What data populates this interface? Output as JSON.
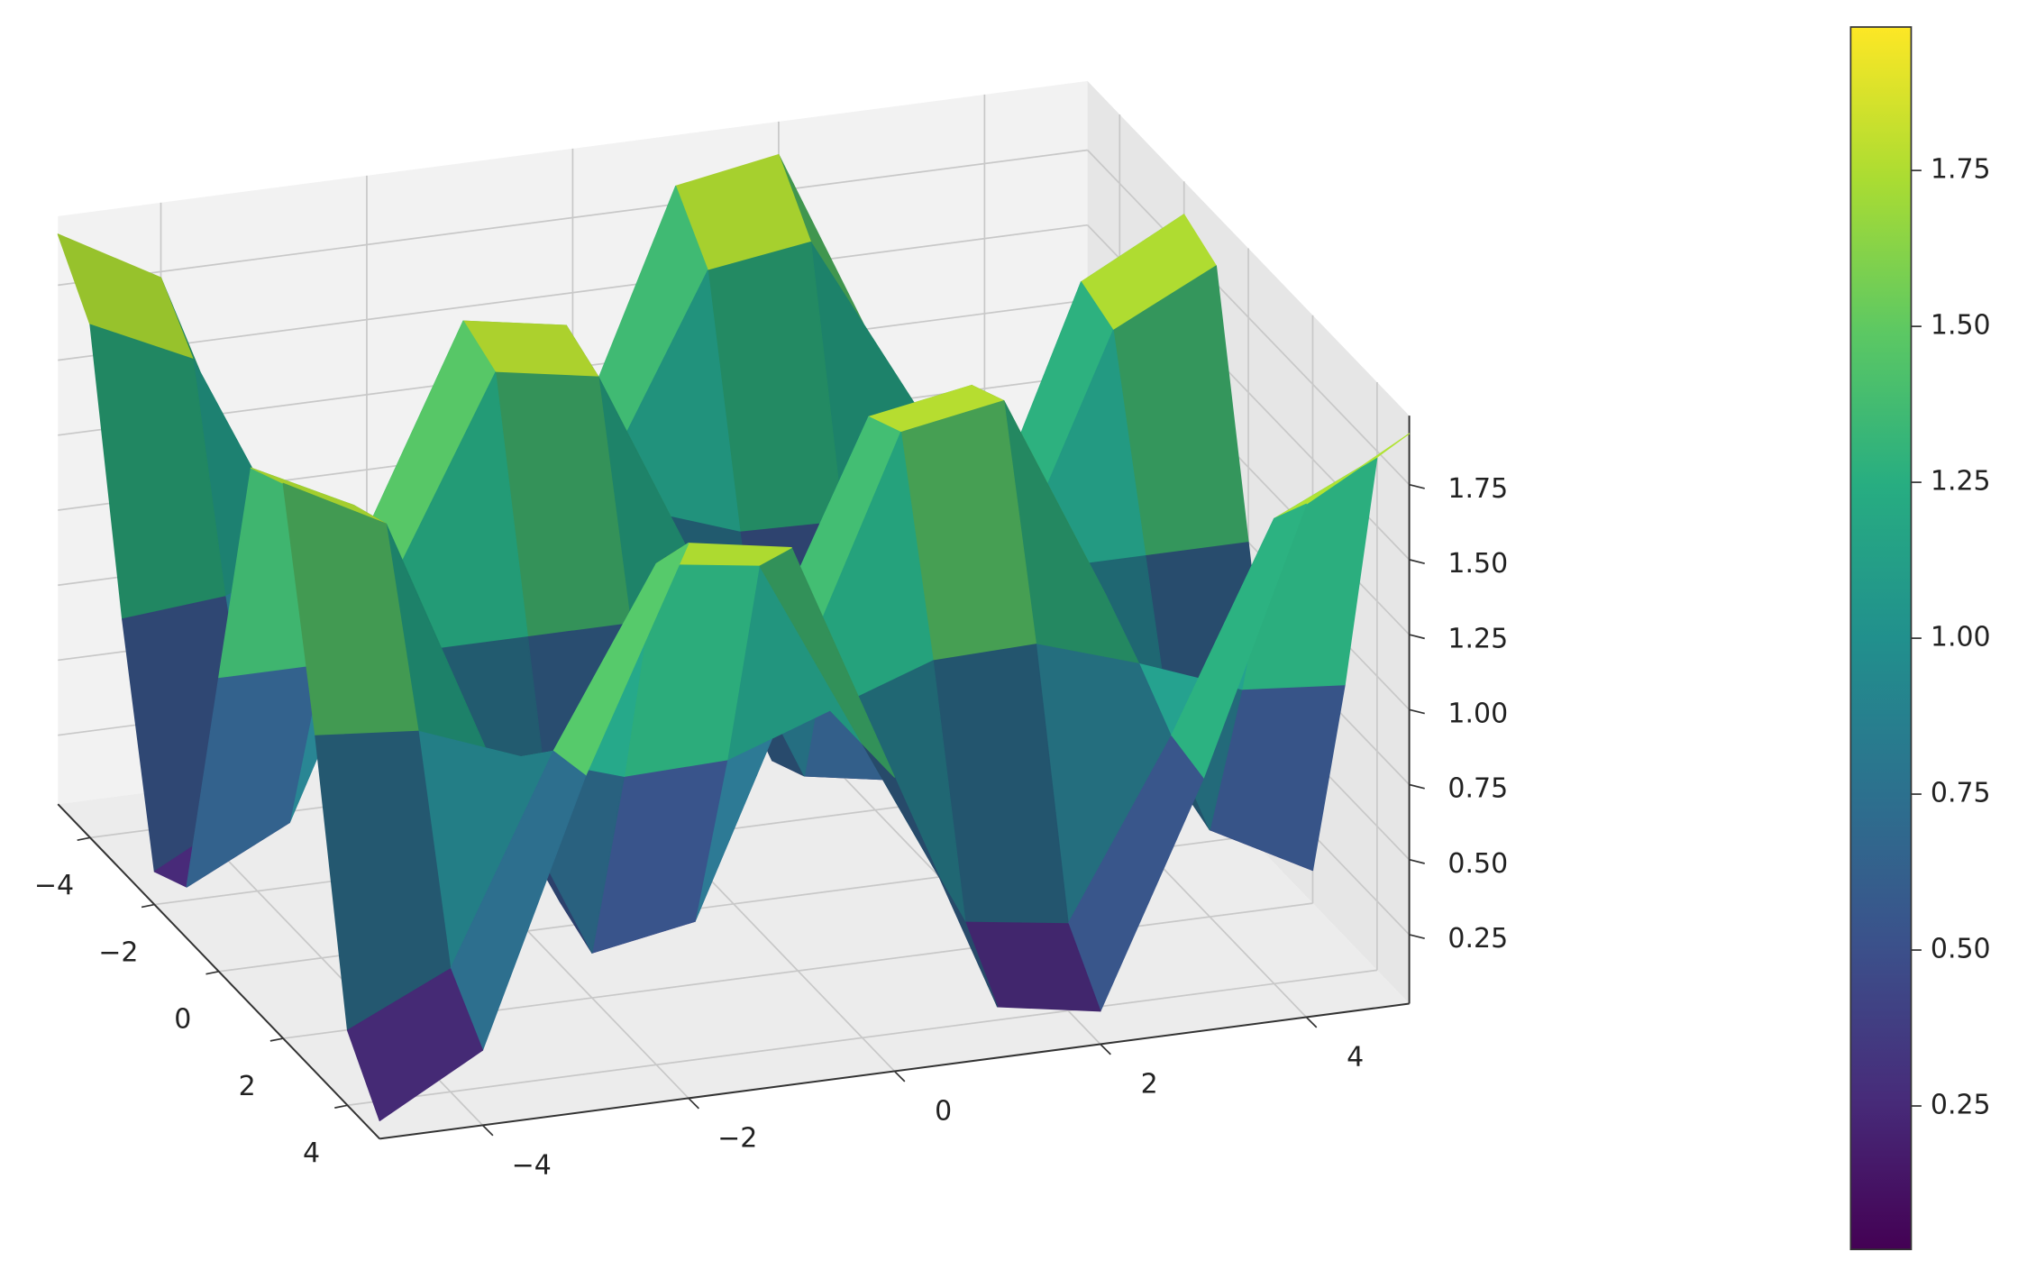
{
  "chart_data": {
    "type": "surface",
    "x": [
      -5,
      -4,
      -3,
      -2,
      -1,
      0,
      1,
      2,
      3,
      4,
      5
    ],
    "y": [
      -5,
      -4,
      -3,
      -2,
      -1,
      0,
      1,
      2,
      3,
      4,
      5
    ],
    "z": [
      [
        1.92,
        1.73,
        0.86,
        0.13,
        0.19,
        1,
        1.81,
        1.87,
        1.14,
        0.27,
        0.08
      ],
      [
        1.73,
        1.57,
        0.89,
        0.31,
        0.36,
        1,
        1.64,
        1.69,
        1.11,
        0.43,
        0.27
      ],
      [
        0.86,
        0.89,
        1.02,
        1.13,
        1.12,
        1,
        0.88,
        0.87,
        0.98,
        1.11,
        1.14
      ],
      [
        0.13,
        0.31,
        1.13,
        1.83,
        1.77,
        1,
        0.23,
        0.17,
        0.87,
        1.69,
        1.87
      ],
      [
        0.19,
        0.36,
        1.12,
        1.77,
        1.71,
        1,
        0.29,
        0.23,
        0.88,
        1.64,
        1.81
      ],
      [
        1,
        1,
        1,
        1,
        1,
        1,
        1,
        1,
        1,
        1,
        1
      ],
      [
        1.81,
        1.64,
        0.88,
        0.23,
        0.29,
        1,
        1.71,
        1.77,
        1.12,
        0.36,
        0.19
      ],
      [
        1.87,
        1.69,
        0.87,
        0.17,
        0.23,
        1,
        1.77,
        1.83,
        1.13,
        0.31,
        0.13
      ],
      [
        1.14,
        1.11,
        0.98,
        0.87,
        0.88,
        1,
        1.12,
        1.13,
        1.02,
        0.89,
        0.86
      ],
      [
        0.27,
        0.43,
        1.11,
        1.69,
        1.64,
        1,
        0.36,
        0.31,
        0.89,
        1.57,
        1.73
      ],
      [
        0.08,
        0.27,
        1.14,
        1.87,
        1.81,
        1,
        0.19,
        0.13,
        0.86,
        1.73,
        1.92
      ]
    ],
    "xlim": [
      -5,
      5
    ],
    "ylim": [
      -5,
      5
    ],
    "zlim": [
      0.02,
      1.98
    ],
    "xticks": [
      {
        "value": -4,
        "label": "−4"
      },
      {
        "value": -2,
        "label": "−2"
      },
      0,
      2,
      4
    ],
    "yticks": [
      {
        "value": -4,
        "label": "−4"
      },
      {
        "value": -2,
        "label": "−2"
      },
      0,
      2,
      4
    ],
    "zticks": [
      0.25,
      {
        "value": 0.5,
        "label": "0.50"
      },
      0.75,
      {
        "value": 1,
        "label": "1.00"
      },
      1.25,
      {
        "value": 1.5,
        "label": "1.50"
      },
      1.75
    ],
    "colormap": "viridis",
    "grid": true,
    "colorbar": {
      "lim": [
        0.02,
        1.98
      ],
      "ticks": [
        0.25,
        {
          "value": 0.5,
          "label": "0.50"
        },
        0.75,
        {
          "value": 1,
          "label": "1.00"
        },
        1.25,
        {
          "value": 1.5,
          "label": "1.50"
        },
        1.75
      ]
    }
  }
}
